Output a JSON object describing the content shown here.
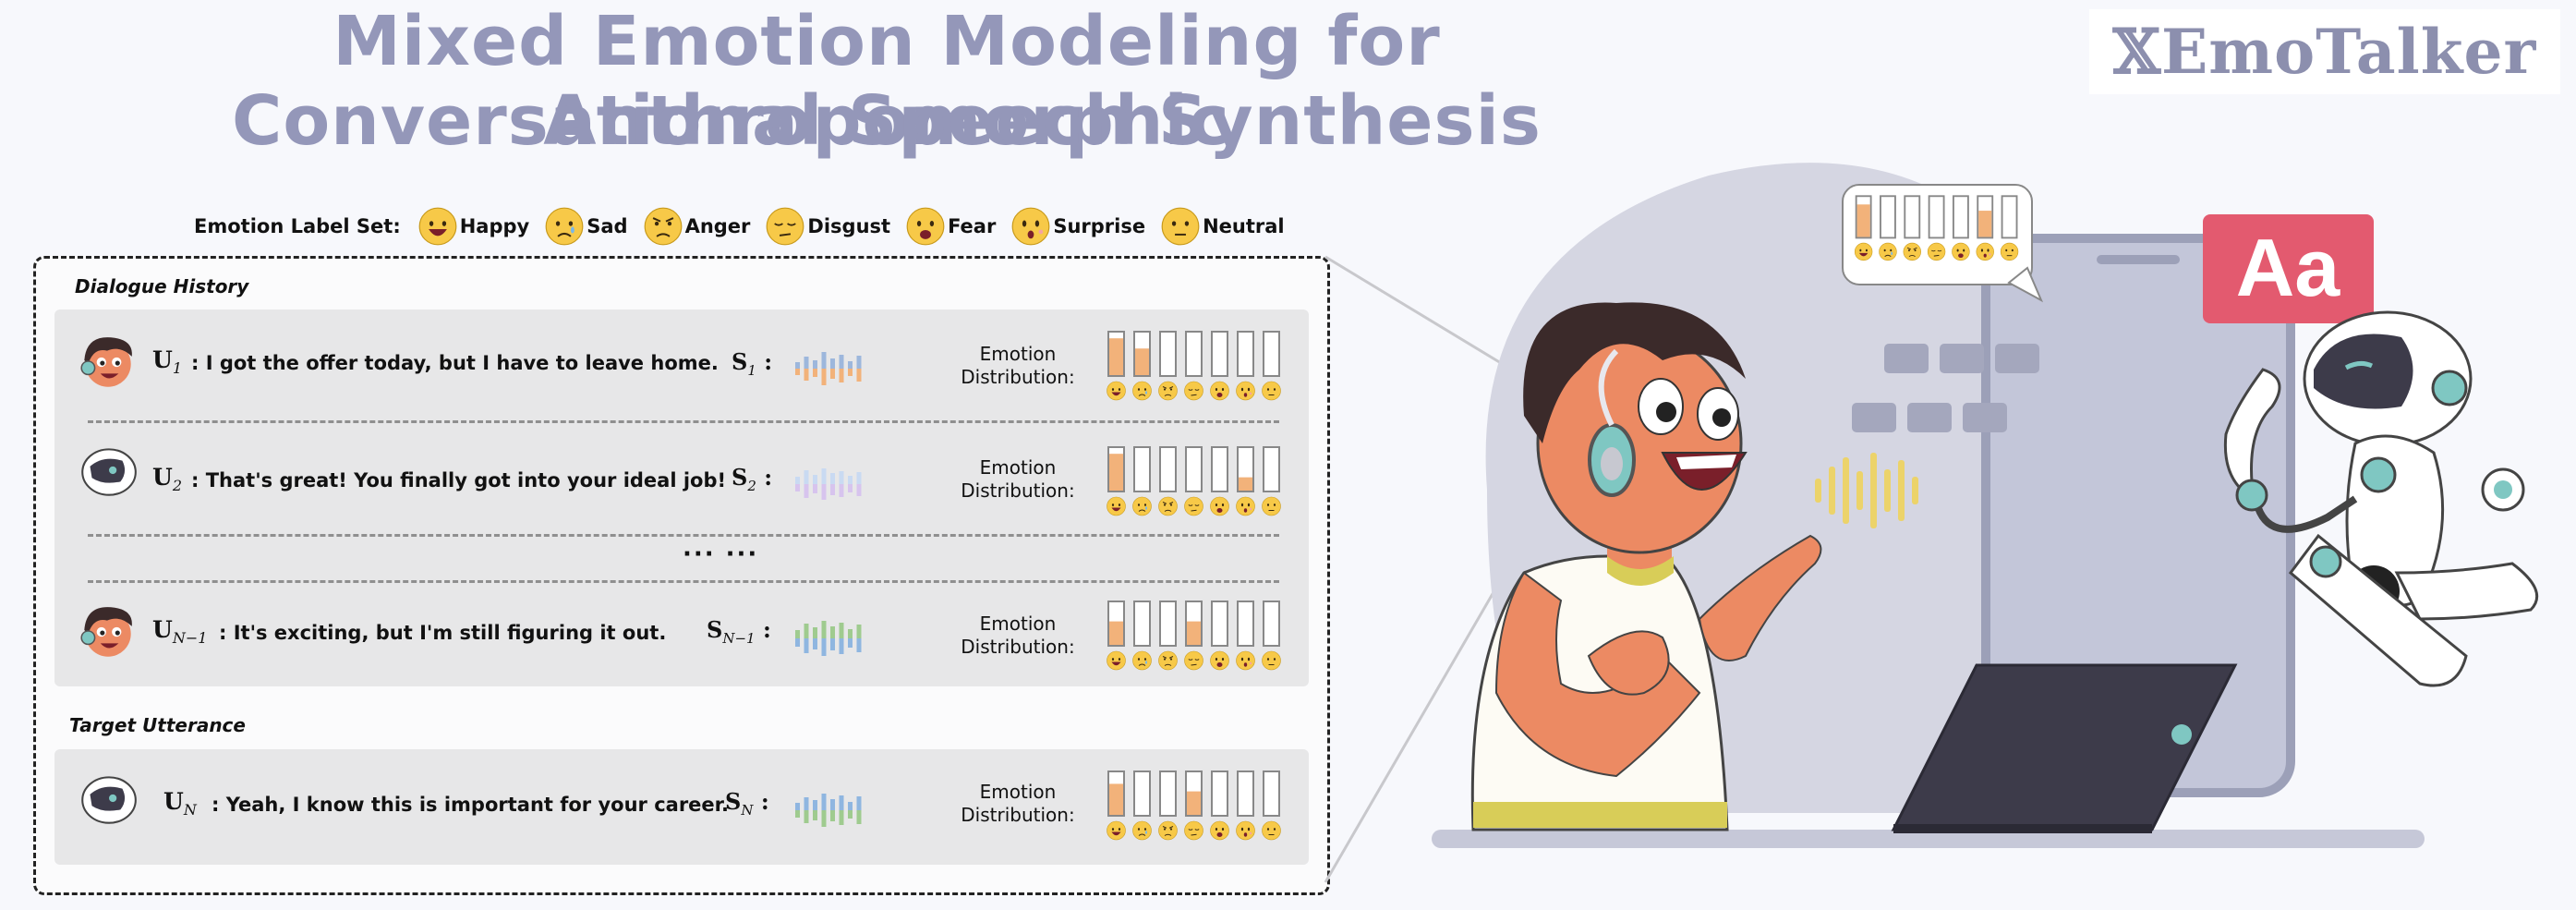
{
  "title": {
    "line1": "Mixed Emotion Modeling for Anthropomorphic",
    "line2": "Conversational Speech Synthesis"
  },
  "brand": "𝕏EmoTalker",
  "emotion_label_set": {
    "title": "Emotion Label Set:",
    "labels": [
      "Happy",
      "Sad",
      "Anger",
      "Disgust",
      "Fear",
      "Surprise",
      "Neutral"
    ]
  },
  "dialogue_history": {
    "label": "Dialogue History",
    "ellipsis": "··· ···",
    "rows": [
      {
        "speaker": "human",
        "u_base": "U",
        "u_sub": "1",
        "sep": ":",
        "text": "I got the offer today, but I have to leave home.",
        "s_base": "S",
        "s_sub": "1",
        "dist_label_1": "Emotion",
        "dist_label_2": "Distribution:",
        "distribution": [
          0.85,
          0.62,
          0,
          0,
          0,
          0,
          0
        ],
        "wave_colors": [
          "#f2b27a",
          "#9db7dc"
        ]
      },
      {
        "speaker": "robot",
        "u_base": "U",
        "u_sub": "2",
        "sep": ":",
        "text": "That's great! You finally got into your ideal job!",
        "s_base": "S",
        "s_sub": "2",
        "dist_label_1": "Emotion",
        "dist_label_2": "Distribution:",
        "distribution": [
          0.85,
          0,
          0,
          0,
          0,
          0.32,
          0
        ],
        "wave_colors": [
          "#d7c4ee",
          "#c9daf2"
        ]
      },
      {
        "speaker": "human",
        "u_base": "U",
        "u_sub": "N−1",
        "sep": ":",
        "text": "It's exciting, but I'm still figuring it out.",
        "s_base": "S",
        "s_sub": "N−1",
        "dist_label_1": "Emotion",
        "dist_label_2": "Distribution:",
        "distribution": [
          0.55,
          0,
          0,
          0.55,
          0,
          0,
          0
        ],
        "wave_colors": [
          "#8fb6e0",
          "#9fcb8f"
        ]
      }
    ]
  },
  "target_utterance": {
    "label": "Target Utterance",
    "speaker": "robot",
    "u_base": "U",
    "u_sub": "N",
    "sep": ":",
    "text": "Yeah, I know this is important for your career.",
    "s_base": "S",
    "s_sub": "N",
    "dist_label_1": "Emotion",
    "dist_label_2": "Distribution:",
    "distribution": [
      0.72,
      0,
      0,
      0.55,
      0,
      0,
      0
    ],
    "wave_colors": [
      "#9fcb8f",
      "#8fb6e0"
    ]
  },
  "illustration": {
    "icon_text": "Aa",
    "bubble_distribution": [
      0.8,
      0,
      0,
      0,
      0,
      0.65,
      0
    ]
  },
  "colors": {
    "title": "#9497b9",
    "bar_fill": "#f2b27a",
    "bar_outline": "#888888",
    "emoji_face": "#f7c948",
    "aa_icon": "#e35a6f",
    "blob": "#d5d6e2"
  }
}
